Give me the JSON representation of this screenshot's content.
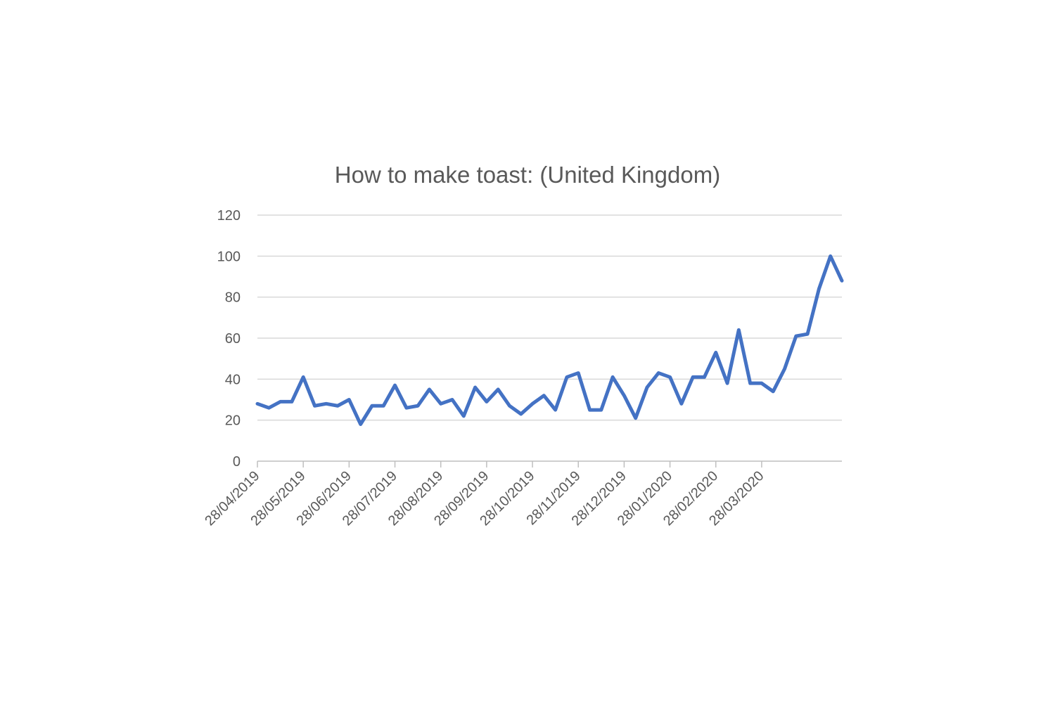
{
  "chart_data": {
    "type": "line",
    "title": "How to make toast: (United Kingdom)",
    "xlabel": "",
    "ylabel": "",
    "ylim": [
      0,
      120
    ],
    "yticks": [
      "0",
      "20",
      "40",
      "60",
      "80",
      "100",
      "120"
    ],
    "grid": true,
    "legend": "none",
    "x_tick_labels": [
      {
        "label": "28/04/2019",
        "week": 0
      },
      {
        "label": "28/05/2019",
        "week": 4
      },
      {
        "label": "28/06/2019",
        "week": 8
      },
      {
        "label": "28/07/2019",
        "week": 12
      },
      {
        "label": "28/08/2019",
        "week": 16
      },
      {
        "label": "28/09/2019",
        "week": 20
      },
      {
        "label": "28/10/2019",
        "week": 24
      },
      {
        "label": "28/11/2019",
        "week": 28
      },
      {
        "label": "28/12/2019",
        "week": 32
      },
      {
        "label": "28/01/2020",
        "week": 36
      },
      {
        "label": "28/02/2020",
        "week": 40
      },
      {
        "label": "28/03/2020",
        "week": 44
      }
    ],
    "series": [
      {
        "name": "How to make toast: (United Kingdom)",
        "color": "#4472C4",
        "values": [
          28,
          26,
          29,
          29,
          41,
          27,
          28,
          27,
          30,
          18,
          27,
          27,
          37,
          26,
          27,
          35,
          28,
          30,
          22,
          36,
          29,
          35,
          27,
          23,
          28,
          32,
          25,
          41,
          43,
          25,
          25,
          41,
          32,
          21,
          36,
          43,
          41,
          28,
          41,
          41,
          53,
          38,
          64,
          38,
          38,
          34,
          45,
          61,
          62,
          84,
          100,
          88
        ]
      }
    ]
  }
}
